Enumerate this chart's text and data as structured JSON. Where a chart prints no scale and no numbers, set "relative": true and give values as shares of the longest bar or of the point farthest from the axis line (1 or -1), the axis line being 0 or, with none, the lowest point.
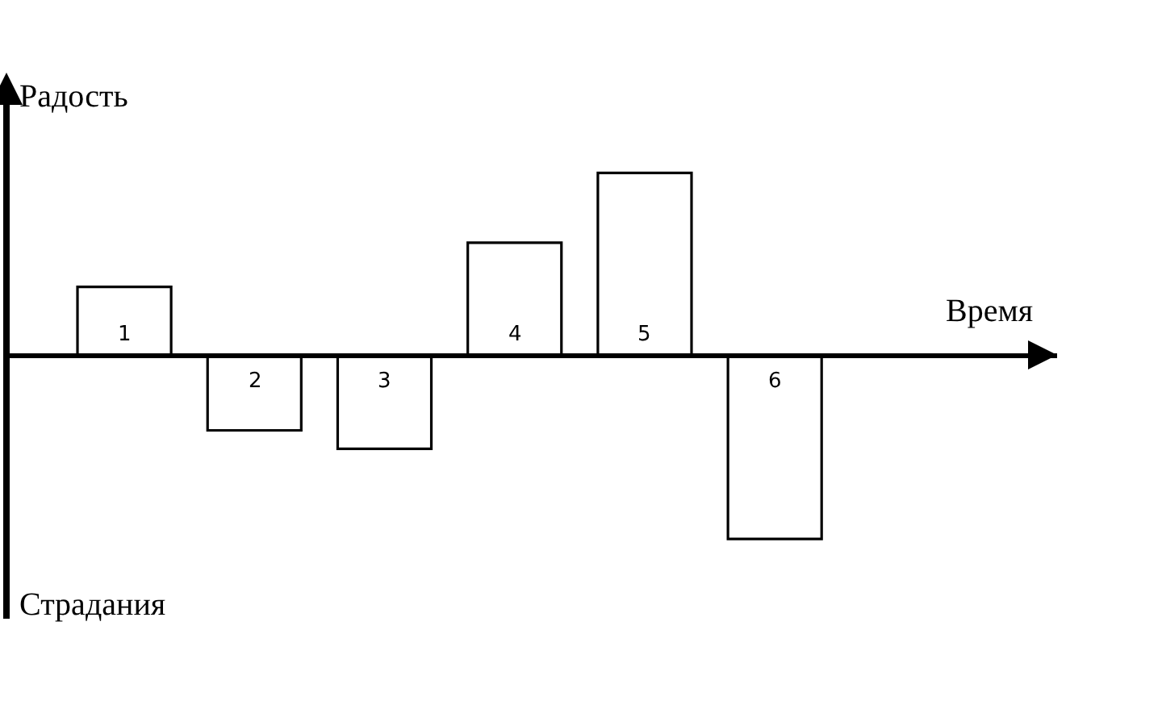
{
  "chart_data": {
    "type": "bar",
    "relative": true,
    "categories": [
      "1",
      "2",
      "3",
      "4",
      "5",
      "6"
    ],
    "values": [
      0.37,
      -0.41,
      -0.51,
      0.61,
      0.99,
      -1
    ],
    "color": "#ffffff",
    "xlabel": "Время",
    "annotations": [
      "Радость",
      "Страдания"
    ],
    "grid": false
  }
}
